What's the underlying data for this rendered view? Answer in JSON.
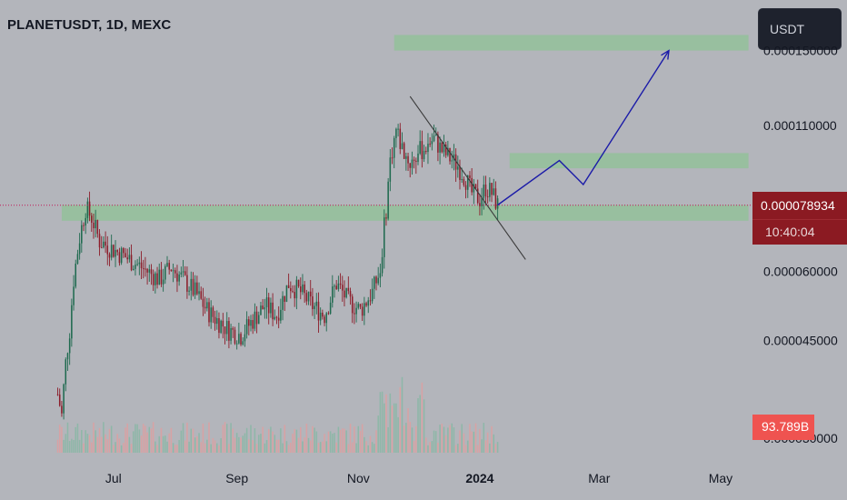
{
  "header": {
    "symbol_title": "PLANETUSDT, 1D, MEXC",
    "currency_label": "USDT"
  },
  "price_tags": {
    "last_price": "0.000078934",
    "countdown": "10:40:04",
    "volume": "93.789B"
  },
  "colors": {
    "background": "#b3b5bb",
    "zone": "#93c19a",
    "projection": "#1c1ca8",
    "up": "#1f6a4f",
    "down": "#8c1d2a",
    "trendline": "#3a3a3a",
    "price_line": "#c2185b",
    "tag": "#8b1a22",
    "volume_tag": "#ef5350"
  },
  "chart_data": {
    "type": "candlestick",
    "title": "PLANETUSDT, 1D, MEXC",
    "x_ticks": [
      "Jul",
      "Sep",
      "Nov",
      "2024",
      "Mar",
      "May"
    ],
    "x_tick_dates": [
      "2023-07-01",
      "2023-09-01",
      "2023-11-01",
      "2024-01-01",
      "2024-03-01",
      "2024-05-01"
    ],
    "y_ticks": [
      {
        "value": 0.00015,
        "label": "0.000150000"
      },
      {
        "value": 0.00011,
        "label": "0.000110000"
      },
      {
        "value": 6e-05,
        "label": "0.000060000"
      },
      {
        "value": 4.5e-05,
        "label": "0.000045000"
      },
      {
        "value": 3e-05,
        "label": "0.000030000"
      }
    ],
    "y_scale": "log",
    "y_range": [
      2.7e-05,
      0.000185
    ],
    "x_range": [
      "2023-05-05",
      "2024-05-17"
    ],
    "last_price": 7.8934e-05,
    "grid": false,
    "series": [
      {
        "type": "close_path",
        "points": [
          [
            "2023-06-03",
            3.6e-05
          ],
          [
            "2023-06-05",
            3.3e-05
          ],
          [
            "2023-06-07",
            4.1e-05
          ],
          [
            "2023-06-09",
            4.7e-05
          ],
          [
            "2023-06-11",
            5.8e-05
          ],
          [
            "2023-06-14",
            6.9e-05
          ],
          [
            "2023-06-17",
            7.8e-05
          ],
          [
            "2023-06-20",
            7.5e-05
          ],
          [
            "2023-06-24",
            6.8e-05
          ],
          [
            "2023-06-30",
            6.6e-05
          ],
          [
            "2023-07-06",
            6.4e-05
          ],
          [
            "2023-07-12",
            6.2e-05
          ],
          [
            "2023-07-18",
            6e-05
          ],
          [
            "2023-07-24",
            5.8e-05
          ],
          [
            "2023-07-30",
            6.1e-05
          ],
          [
            "2023-08-05",
            5.8e-05
          ],
          [
            "2023-08-11",
            5.5e-05
          ],
          [
            "2023-08-17",
            5.1e-05
          ],
          [
            "2023-08-22",
            4.9e-05
          ],
          [
            "2023-08-28",
            4.7e-05
          ],
          [
            "2023-09-03",
            4.6e-05
          ],
          [
            "2023-09-09",
            4.9e-05
          ],
          [
            "2023-09-15",
            5.2e-05
          ],
          [
            "2023-09-21",
            5e-05
          ],
          [
            "2023-09-27",
            5.7e-05
          ],
          [
            "2023-10-03",
            5.5e-05
          ],
          [
            "2023-10-09",
            5.2e-05
          ],
          [
            "2023-10-15",
            5e-05
          ],
          [
            "2023-10-21",
            5.7e-05
          ],
          [
            "2023-10-27",
            5.3e-05
          ],
          [
            "2023-11-02",
            5.1e-05
          ],
          [
            "2023-11-08",
            5.5e-05
          ],
          [
            "2023-11-12",
            6e-05
          ],
          [
            "2023-11-15",
            7.8e-05
          ],
          [
            "2023-11-17",
            9.5e-05
          ],
          [
            "2023-11-20",
            0.000108
          ],
          [
            "2023-11-23",
            0.0001
          ],
          [
            "2023-11-27",
            9.4e-05
          ],
          [
            "2023-12-01",
            9.8e-05
          ],
          [
            "2023-12-05",
            0.000101
          ],
          [
            "2023-12-09",
            0.000104
          ],
          [
            "2023-12-13",
            9.9e-05
          ],
          [
            "2023-12-17",
            9.6e-05
          ],
          [
            "2023-12-21",
            9.3e-05
          ],
          [
            "2023-12-25",
            8.8e-05
          ],
          [
            "2023-12-28",
            8.3e-05
          ],
          [
            "2024-01-01",
            8.1e-05
          ],
          [
            "2024-01-04",
            8.5e-05
          ],
          [
            "2024-01-07",
            8.3e-05
          ],
          [
            "2024-01-10",
            7.8934e-05
          ]
        ]
      },
      {
        "type": "projection",
        "points": [
          [
            "2024-01-10",
            7.9e-05
          ],
          [
            "2024-02-10",
            9.5e-05
          ],
          [
            "2024-02-22",
            8.6e-05
          ],
          [
            "2024-04-05",
            0.00015
          ]
        ]
      }
    ],
    "zones": [
      {
        "from": "2023-11-19",
        "to": "2024-05-15",
        "low": 0.00015,
        "high": 0.00016
      },
      {
        "from": "2024-01-16",
        "to": "2024-05-15",
        "low": 9.2e-05,
        "high": 9.8e-05
      },
      {
        "from": "2023-06-05",
        "to": "2024-05-15",
        "low": 7.4e-05,
        "high": 7.9e-05
      }
    ],
    "trendline": {
      "from": [
        "2023-11-27",
        0.000124
      ],
      "to": [
        "2024-01-24",
        6.3e-05
      ]
    }
  }
}
